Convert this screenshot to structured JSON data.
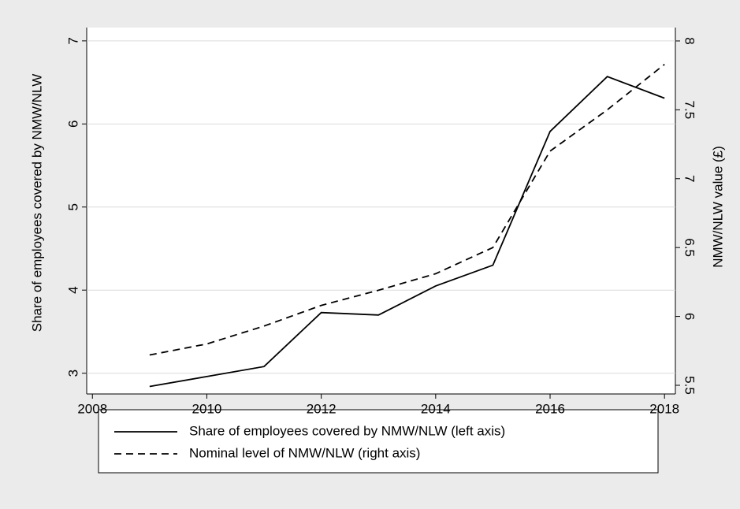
{
  "chart_data": {
    "type": "line",
    "x": [
      2009,
      2010,
      2011,
      2012,
      2013,
      2014,
      2015,
      2016,
      2017,
      2018
    ],
    "xlim": [
      2007.9,
      2018.19
    ],
    "xticks": [
      2008,
      2010,
      2012,
      2014,
      2016,
      2018
    ],
    "ylim": [
      2.75,
      7.16
    ],
    "yticks": [
      3,
      4,
      5,
      6,
      7
    ],
    "y2lim": [
      5.437,
      8.097
    ],
    "y2ticks": [
      5.5,
      6,
      6.5,
      7,
      7.5,
      8
    ],
    "y_label": "Share of employees covered by  NMW/NLW",
    "y2_label": "NMW/NLW value (£)",
    "grid": true,
    "series": [
      {
        "name": "Share of employees covered by NMW/NLW (left axis)",
        "color": "#000000",
        "dashed": false,
        "values": [
          2.84,
          2.96,
          3.08,
          3.73,
          3.7,
          4.05,
          4.3,
          5.91,
          6.57,
          6.31
        ]
      },
      {
        "name": "Nominal level of NMW/NLW (right axis)",
        "color": "#000000",
        "dashed": true,
        "axis": "y2",
        "values": [
          5.72,
          5.8,
          5.93,
          6.08,
          6.19,
          6.31,
          6.5,
          7.2,
          7.5,
          7.83
        ]
      }
    ]
  }
}
